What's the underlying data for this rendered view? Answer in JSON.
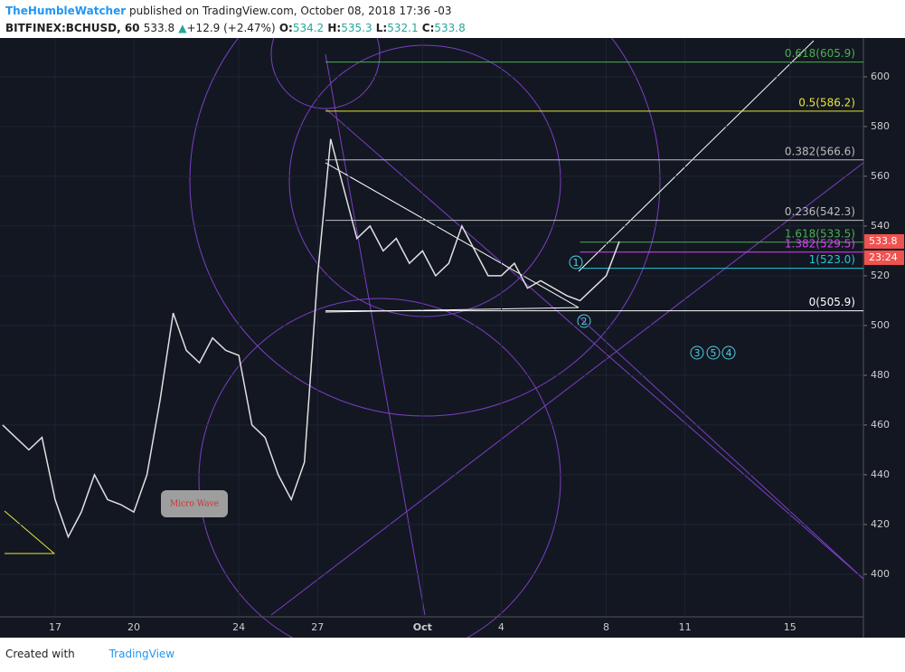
{
  "header": {
    "author": "TheHumbleWatcher",
    "published": "published on TradingView.com, October 08, 2018 17:36 -03",
    "symbol": "BITFINEX:BCHUSD, 60",
    "last": "533.8",
    "arrow": "▲",
    "change": "+12.9 (+2.47%)",
    "o_label": "O:",
    "o": "534.2",
    "h_label": "H:",
    "h": "535.3",
    "l_label": "L:",
    "l": "532.1",
    "c_label": "C:",
    "c": "533.8"
  },
  "footer": {
    "created": "Created with",
    "brand": "TradingView"
  },
  "chart_data": {
    "type": "line",
    "color": "#e0e0e0",
    "x": [
      15,
      15.5,
      16,
      16.5,
      17,
      17.5,
      18,
      18.5,
      19,
      19.5,
      20,
      20.5,
      21,
      21.5,
      22,
      22.5,
      23,
      23.5,
      24,
      24.5,
      25,
      25.5,
      26,
      26.5,
      27,
      27.5,
      28,
      28.5,
      29,
      29.5,
      30,
      30.5,
      31,
      31.5,
      32,
      32.5,
      33,
      33.5,
      34,
      34.5,
      35,
      35.5,
      36,
      36.5,
      37,
      37.5,
      38,
      38.5
    ],
    "values": [
      460,
      455,
      450,
      455,
      430,
      415,
      425,
      440,
      430,
      428,
      425,
      440,
      470,
      505,
      490,
      485,
      495,
      490,
      488,
      460,
      455,
      440,
      430,
      445,
      520,
      575,
      555,
      535,
      540,
      530,
      535,
      525,
      530,
      520,
      525,
      540,
      530,
      520,
      520,
      525,
      515,
      518,
      515,
      512,
      510,
      515,
      520,
      533.8
    ],
    "xlim": [
      14.9,
      47.8
    ],
    "ylim": [
      383.6,
      615.6
    ],
    "xticks": [
      17,
      20,
      24,
      27,
      {
        "value": 31,
        "label": "Oct"
      },
      {
        "value": 34,
        "label": "4"
      },
      {
        "value": 38,
        "label": "8"
      },
      {
        "value": 41,
        "label": "11"
      },
      {
        "value": 45,
        "label": "15"
      }
    ],
    "yticks": [
      400,
      420,
      440,
      460,
      480,
      500,
      520,
      540,
      560,
      580,
      600
    ],
    "grid": true,
    "levels": [
      {
        "value": 605.9,
        "label": "0.618(605.9)",
        "color": "#4caf50",
        "start": 27.3
      },
      {
        "value": 586.2,
        "label": "0.5(586.2)",
        "color": "#e6e63a",
        "start": 27.3
      },
      {
        "value": 566.6,
        "label": "0.382(566.6)",
        "color": "#bdbdbd",
        "start": 27.3
      },
      {
        "value": 542.3,
        "label": "0.236(542.3)",
        "color": "#bdbdbd",
        "start": 27.3
      },
      {
        "value": 533.5,
        "label": "1.618(533.5)",
        "color": "#4caf50",
        "start": 37
      },
      {
        "value": 529.5,
        "label": "1.382(529.5)",
        "color": "#e040fb",
        "start": 37
      },
      {
        "value": 523.0,
        "label": "1(523.0)",
        "color": "#26c6da",
        "start": 37
      },
      {
        "value": 505.9,
        "label": "0(505.9)",
        "color": "#ffffff",
        "start": 27.3
      }
    ],
    "price_tag": 533.8,
    "countdown": "23:24",
    "annotations": {
      "micro_wave": "Micro Wave",
      "w1": "1",
      "w2": "2",
      "w3": "3",
      "w5": "5",
      "w4": "4"
    }
  }
}
